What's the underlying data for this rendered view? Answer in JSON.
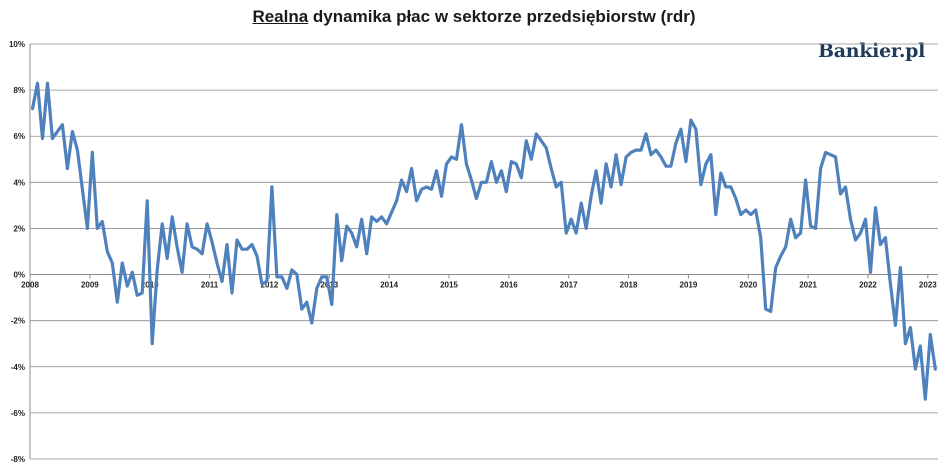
{
  "chart_data": {
    "type": "line",
    "title_underlined": "Realna",
    "title_rest": " dynamika płac w sektorze przedsiębiorstw (rdr)",
    "logo": "Bankier.pl",
    "xlabel": "",
    "ylabel": "",
    "xlim": [
      2008.0,
      2023.17
    ],
    "ylim": [
      -8,
      10
    ],
    "y_ticks": [
      10,
      8,
      6,
      4,
      2,
      0,
      -2,
      -4,
      -6,
      -8
    ],
    "y_tick_labels": [
      "10%",
      "8%",
      "6%",
      "4%",
      "2%",
      "0%",
      "-2%",
      "-4%",
      "-6%",
      "-8%"
    ],
    "x_ticks": [
      2008,
      2009,
      2010,
      2011,
      2012,
      2013,
      2014,
      2015,
      2016,
      2017,
      2018,
      2019,
      2020,
      2021,
      2022,
      2023
    ],
    "x_tick_labels": [
      "2008",
      "2009",
      "2010",
      "2011",
      "2012",
      "2013",
      "2014",
      "2015",
      "2016",
      "2017",
      "2018",
      "2019",
      "2020",
      "2021",
      "2022",
      "2023"
    ],
    "grid": true,
    "line_color": "#4f81bd",
    "series": [
      {
        "name": "",
        "start_year": 2008,
        "values": [
          7.2,
          8.3,
          5.9,
          8.3,
          5.9,
          6.2,
          6.5,
          4.6,
          6.2,
          5.4,
          3.7,
          2.0,
          5.3,
          2.0,
          2.3,
          1.0,
          0.5,
          -1.2,
          0.5,
          -0.5,
          0.1,
          -0.9,
          -0.8,
          3.2,
          -3.0,
          0.2,
          2.2,
          0.7,
          2.5,
          1.2,
          0.1,
          2.2,
          1.2,
          1.1,
          0.9,
          2.2,
          1.4,
          0.5,
          -0.3,
          1.3,
          -0.8,
          1.5,
          1.1,
          1.1,
          1.3,
          0.8,
          -0.4,
          -0.3,
          3.8,
          -0.1,
          -0.1,
          -0.6,
          0.2,
          0.0,
          -1.5,
          -1.2,
          -2.1,
          -0.6,
          -0.1,
          -0.1,
          -1.3,
          2.6,
          0.6,
          2.1,
          1.8,
          1.2,
          2.4,
          0.9,
          2.5,
          2.3,
          2.5,
          2.2,
          2.7,
          3.2,
          4.1,
          3.6,
          4.6,
          3.2,
          3.7,
          3.8,
          3.7,
          4.5,
          3.4,
          4.8,
          5.1,
          5.0,
          6.5,
          4.8,
          4.1,
          3.3,
          4.0,
          4.0,
          4.9,
          4.0,
          4.5,
          3.6,
          4.9,
          4.8,
          4.2,
          5.8,
          5.0,
          6.1,
          5.8,
          5.5,
          4.6,
          3.8,
          4.0,
          1.8,
          2.4,
          1.8,
          3.1,
          2.0,
          3.4,
          4.5,
          3.1,
          4.8,
          3.8,
          5.2,
          3.9,
          5.1,
          5.3,
          5.4,
          5.4,
          6.1,
          5.2,
          5.4,
          5.1,
          4.7,
          4.7,
          5.7,
          6.3,
          4.9,
          6.7,
          6.3,
          3.9,
          4.8,
          5.2,
          2.6,
          4.4,
          3.8,
          3.8,
          3.3,
          2.6,
          2.8,
          2.6,
          2.8,
          1.6,
          -1.5,
          -1.6,
          0.3,
          0.8,
          1.2,
          2.4,
          1.6,
          1.8,
          4.1,
          2.1,
          2.0,
          4.6,
          5.3,
          5.2,
          5.1,
          3.5,
          3.8,
          2.4,
          1.5,
          1.8,
          2.4,
          0.1,
          2.9,
          1.3,
          1.6,
          -0.4,
          -2.2,
          0.3,
          -3.0,
          -2.3,
          -4.1,
          -3.1,
          -5.4,
          -2.6,
          -4.1
        ]
      }
    ]
  }
}
